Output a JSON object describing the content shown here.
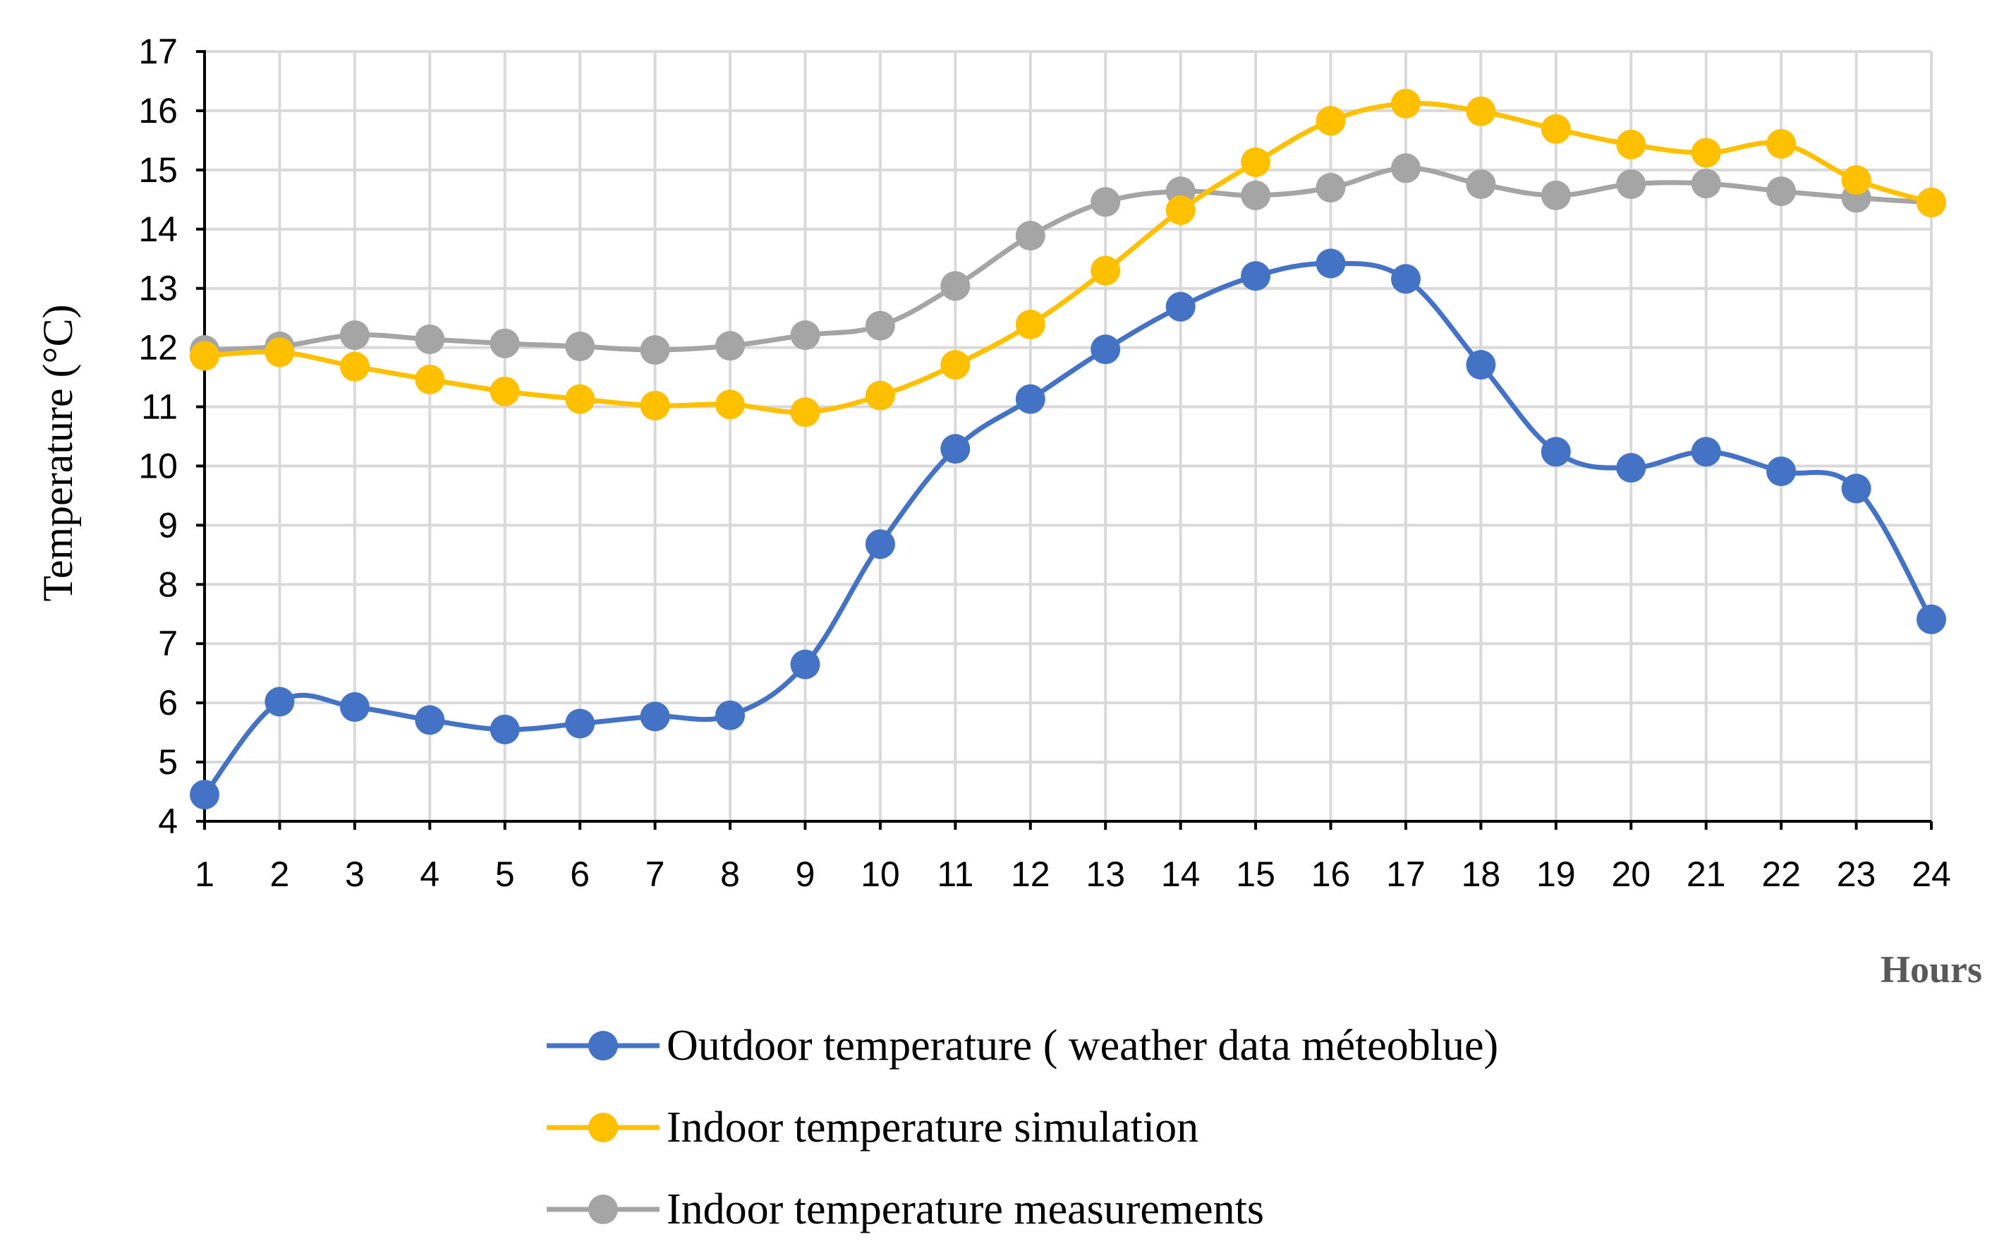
{
  "chart_data": {
    "type": "line",
    "title": "",
    "xlabel": "Hours",
    "ylabel": "Temperature (°C)",
    "ylim": [
      4,
      17
    ],
    "xlim": [
      1,
      24
    ],
    "grid": true,
    "legend_position": "bottom",
    "categories": [
      1,
      2,
      3,
      4,
      5,
      6,
      7,
      8,
      9,
      10,
      11,
      12,
      13,
      14,
      15,
      16,
      17,
      18,
      19,
      20,
      21,
      22,
      23,
      24
    ],
    "y_ticks": [
      4,
      5,
      6,
      7,
      8,
      9,
      10,
      11,
      12,
      13,
      14,
      15,
      16,
      17
    ],
    "series": [
      {
        "name": "Outdoor temperature ( weather data méteoblue)",
        "color": "#4472C4",
        "values": [
          4.45,
          6.02,
          5.93,
          5.71,
          5.55,
          5.65,
          5.77,
          5.79,
          6.65,
          8.68,
          10.29,
          11.13,
          11.97,
          12.69,
          13.21,
          13.42,
          13.16,
          11.71,
          10.24,
          9.97,
          10.24,
          9.91,
          9.62,
          7.41
        ]
      },
      {
        "name": "Indoor temperature simulation",
        "color": "#FFC000",
        "values": [
          11.86,
          11.92,
          11.68,
          11.46,
          11.26,
          11.13,
          11.02,
          11.04,
          10.91,
          11.19,
          11.71,
          12.39,
          13.3,
          14.32,
          15.13,
          15.83,
          16.12,
          15.99,
          15.69,
          15.43,
          15.29,
          15.44,
          14.83,
          14.45
        ]
      },
      {
        "name": "Indoor temperature measurements",
        "color": "#A5A5A5",
        "values": [
          11.96,
          12.02,
          12.21,
          12.14,
          12.07,
          12.02,
          11.96,
          12.03,
          12.21,
          12.37,
          13.04,
          13.89,
          14.46,
          14.64,
          14.57,
          14.7,
          15.03,
          14.76,
          14.57,
          14.76,
          14.77,
          14.64,
          14.53,
          14.45
        ]
      }
    ]
  }
}
